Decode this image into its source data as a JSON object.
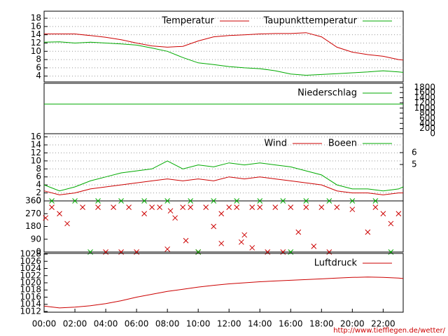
{
  "chart_data": [
    {
      "type": "line",
      "legend": "top-right",
      "grid": true,
      "x": [
        0,
        1,
        2,
        3,
        4,
        5,
        6,
        7,
        8,
        9,
        10,
        11,
        12,
        13,
        14,
        15,
        16,
        17,
        18,
        19,
        20,
        21,
        22,
        23,
        23.3
      ],
      "xlim": [
        0,
        23.3
      ],
      "ylim": [
        2.6,
        19.7
      ],
      "yticks": [
        4,
        6,
        8,
        10,
        12,
        14,
        16,
        18
      ],
      "series": [
        {
          "name": "Temperatur",
          "color": "#cc0000",
          "values": [
            14.2,
            14.2,
            14.2,
            13.8,
            13.4,
            12.8,
            12.0,
            11.3,
            11.0,
            11.2,
            12.5,
            13.5,
            13.8,
            14.0,
            14.2,
            14.3,
            14.3,
            14.5,
            13.5,
            11.0,
            9.8,
            9.2,
            8.8,
            8.0,
            7.9
          ]
        },
        {
          "name": "Taupunkttemperatur",
          "color": "#00aa00",
          "values": [
            12.2,
            12.3,
            12.0,
            12.2,
            12.0,
            11.8,
            11.5,
            10.8,
            10.0,
            8.5,
            7.2,
            6.8,
            6.3,
            6.0,
            5.8,
            5.3,
            4.5,
            4.2,
            4.4,
            4.6,
            4.8,
            5.0,
            5.3,
            5.0,
            4.9
          ]
        }
      ]
    },
    {
      "type": "line",
      "legend": "top-right",
      "y_axis": "right",
      "x": [
        0,
        23.3
      ],
      "xlim": [
        0,
        23.3
      ],
      "ylim": [
        0,
        1960
      ],
      "yticks": [
        0,
        200,
        400,
        600,
        800,
        1000,
        1200,
        1400,
        1600,
        1800
      ],
      "series": [
        {
          "name": "Niederschlag",
          "color": "#00aa00",
          "values": [
            1150,
            1150
          ]
        }
      ]
    },
    {
      "type": "line",
      "legend": "top-right",
      "grid": true,
      "x": [
        0,
        1,
        2,
        3,
        4,
        5,
        6,
        7,
        8,
        9,
        10,
        11,
        12,
        13,
        14,
        15,
        16,
        17,
        18,
        19,
        20,
        21,
        22,
        23,
        23.3
      ],
      "xlim": [
        0,
        23.3
      ],
      "ylim": [
        0,
        16.8
      ],
      "yticks": [
        0,
        2,
        4,
        6,
        8,
        10,
        12,
        14,
        16
      ],
      "y2lim": [
        1.94,
        7.59
      ],
      "y2ticks": [
        5,
        6
      ],
      "series": [
        {
          "name": "Wind",
          "color": "#cc0000",
          "values": [
            2.5,
            1.5,
            2,
            3,
            3.5,
            4,
            4.5,
            5,
            5.5,
            5,
            5.5,
            5,
            6,
            5.5,
            6,
            5.5,
            5,
            4.5,
            4,
            2.5,
            2,
            2,
            1.5,
            2,
            2
          ]
        },
        {
          "name": "Boeen",
          "color": "#00aa00",
          "values": [
            4,
            2.5,
            3.5,
            5,
            6,
            7,
            7.5,
            8,
            10,
            8,
            9,
            8.5,
            9.5,
            9,
            9.5,
            9,
            8.5,
            7.5,
            6.5,
            4,
            3,
            3,
            2.5,
            3,
            3.5
          ]
        }
      ]
    },
    {
      "type": "scatter",
      "xlim": [
        0,
        23.3
      ],
      "ylim": [
        0,
        360
      ],
      "yticks": [
        0,
        90,
        180,
        270,
        360
      ],
      "series": [
        {
          "color": "#cc0000",
          "x": [
            0.1,
            0.5,
            1.0,
            1.5,
            2.5,
            3.5,
            4.5,
            5.5,
            6.5,
            7.0,
            7.5,
            8.2,
            8.5,
            9.0,
            9.5,
            10.5,
            11.0,
            11.5,
            12.0,
            12.5,
            13.0,
            13.5,
            14.0,
            15.0,
            16.0,
            16.5,
            17.0,
            18.0,
            19.0,
            20.0,
            21.0,
            21.5,
            22.0,
            22.5,
            23.0,
            4.0,
            5.0,
            6.0,
            8.0,
            9.2,
            10.0,
            11.5,
            12.8,
            13.5,
            14.5,
            15.5,
            17.5,
            18.5
          ],
          "values": [
            240,
            315,
            270,
            200,
            315,
            315,
            315,
            315,
            270,
            315,
            315,
            290,
            240,
            315,
            315,
            315,
            180,
            270,
            315,
            315,
            120,
            315,
            315,
            315,
            315,
            140,
            315,
            315,
            315,
            300,
            140,
            315,
            270,
            200,
            270,
            0,
            0,
            0,
            20,
            80,
            0,
            60,
            70,
            30,
            0,
            0,
            40,
            0
          ]
        },
        {
          "color": "#00aa00",
          "x": [
            0.5,
            2.0,
            3.5,
            5.0,
            6.5,
            8.0,
            9.5,
            11.0,
            12.5,
            14.0,
            15.5,
            17.0,
            18.5,
            20.0,
            21.5,
            3.0,
            10.0,
            16.0,
            22.5
          ],
          "values": [
            360,
            360,
            360,
            360,
            360,
            360,
            360,
            360,
            360,
            360,
            360,
            360,
            360,
            360,
            360,
            0,
            0,
            0,
            0
          ]
        }
      ]
    },
    {
      "type": "line",
      "legend": "top-right",
      "x": [
        0,
        1,
        2,
        3,
        4,
        5,
        6,
        7,
        8,
        9,
        10,
        11,
        12,
        13,
        14,
        15,
        16,
        17,
        18,
        19,
        20,
        21,
        22,
        23,
        23.3
      ],
      "xlim": [
        0,
        23.3
      ],
      "ylim": [
        1011.8,
        1028.2
      ],
      "yticks": [
        1012,
        1014,
        1016,
        1018,
        1020,
        1022,
        1024,
        1026,
        1028
      ],
      "xticks": [
        {
          "value": 0,
          "label": "00:00"
        },
        {
          "value": 2,
          "label": "02:00"
        },
        {
          "value": 4,
          "label": "04:00"
        },
        {
          "value": 6,
          "label": "06:00"
        },
        {
          "value": 8,
          "label": "08:00"
        },
        {
          "value": 10,
          "label": "10:00"
        },
        {
          "value": 12,
          "label": "12:00"
        },
        {
          "value": 14,
          "label": "14:00"
        },
        {
          "value": 16,
          "label": "16:00"
        },
        {
          "value": 18,
          "label": "18:00"
        },
        {
          "value": 20,
          "label": "20:00"
        },
        {
          "value": 22,
          "label": "22:00"
        }
      ],
      "series": [
        {
          "name": "Luftdruck",
          "color": "#cc0000",
          "values": [
            1013.5,
            1013.0,
            1013.2,
            1013.6,
            1014.2,
            1015.0,
            1016.0,
            1016.8,
            1017.6,
            1018.2,
            1018.8,
            1019.3,
            1019.7,
            1020.0,
            1020.3,
            1020.5,
            1020.7,
            1020.9,
            1021.1,
            1021.3,
            1021.5,
            1021.6,
            1021.5,
            1021.3,
            1021.2
          ]
        }
      ]
    }
  ],
  "footer": {
    "url": "http://www.tiefflegen.de/wetter/"
  }
}
